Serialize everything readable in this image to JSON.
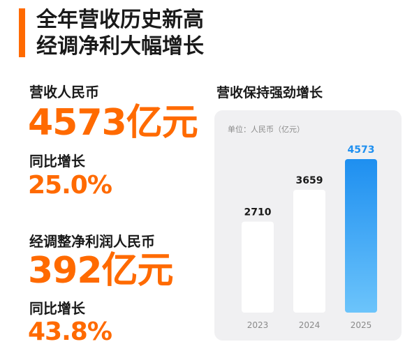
{
  "headline": {
    "line1": "全年营收历史新高",
    "line2": "经调净利大幅增长"
  },
  "metrics": {
    "revenue_label": "营收人民币",
    "revenue_value": "4573亿元",
    "revenue_growth_label": "同比增长",
    "revenue_growth_value": "25.0%",
    "profit_label": "经调整净利润人民币",
    "profit_value": "392亿元",
    "profit_growth_label": "同比增长",
    "profit_growth_value": "43.8%"
  },
  "chart": {
    "title": "营收保持强劲增长",
    "unit_note": "单位：人民币（亿元）"
  },
  "colors": {
    "accent": "#ff6a00",
    "bar_normal": "#ffffff",
    "bar_highlight_top": "#1e8ff0",
    "bar_highlight_bottom": "#6cc4fb",
    "value_normal": "#1a1a1a",
    "value_highlight": "#1e8ff0",
    "tick": "#8a8a8a"
  },
  "chart_data": {
    "type": "bar",
    "title": "营收保持强劲增长",
    "unit": "单位：人民币（亿元）",
    "categories": [
      "2023",
      "2024",
      "2025"
    ],
    "values": [
      2710,
      3659,
      4573
    ],
    "highlight_index": 2,
    "ylim": [
      0,
      4573
    ],
    "grid": false,
    "legend": "none"
  }
}
